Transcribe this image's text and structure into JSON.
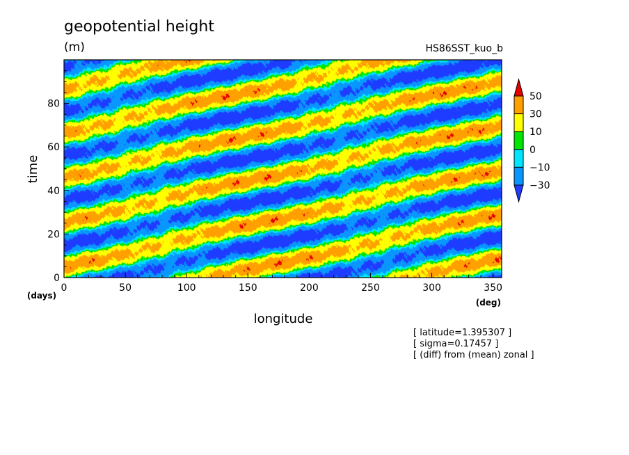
{
  "chart_data": {
    "type": "heatmap",
    "title": "geopotential height",
    "units": "(m)",
    "experiment": "HS86SST_kuo_b",
    "xlabel": "longitude",
    "xunit": "(deg)",
    "ylabel": "time",
    "yunit": "(days)",
    "xlim": [
      0,
      357
    ],
    "ylim": [
      0,
      100
    ],
    "xticks": [
      0,
      50,
      100,
      150,
      200,
      250,
      300,
      350
    ],
    "yticks": [
      0,
      20,
      40,
      60,
      80
    ],
    "levels": [
      -30,
      -10,
      0,
      10,
      30,
      50
    ],
    "level_labels": [
      "50",
      "30",
      "10",
      "0",
      "−10",
      "−30"
    ],
    "colors": [
      "#1e3cff",
      "#0a96ff",
      "#00e6ff",
      "#00e600",
      "#ffff00",
      "#ffa000",
      "#e60000"
    ],
    "field": {
      "description_free": true,
      "band_speed_deg_per_day": 8.0,
      "band_period_days": 20.5,
      "amplitude_m": 38
    },
    "notes": [
      "[ latitude=1.395307 ]",
      "[ sigma=0.17457 ]",
      "[ (diff) from (mean) zonal ]"
    ]
  }
}
